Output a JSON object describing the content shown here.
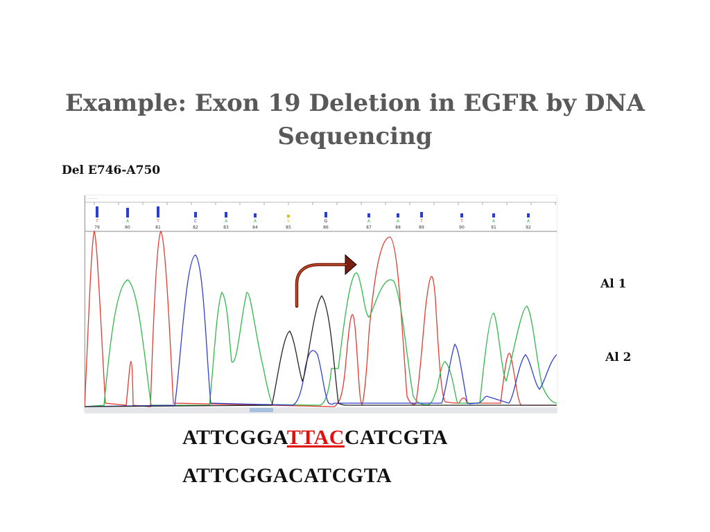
{
  "slide": {
    "title": "Example: Exon 19 Deletion in EGFR by DNA Sequencing",
    "subtitle": "Del E746-A750",
    "allele_1": "Al 1",
    "allele_2": "Al 2"
  },
  "sequences": {
    "wild_type": {
      "prefix": "ATTCGGA",
      "deleted": "TTAC",
      "suffix": "CATCGTA"
    },
    "mutant": "ATTCGGACATCGTA"
  },
  "chromatogram": {
    "base_positions": [
      "79",
      "80",
      "81",
      "82",
      "83",
      "84",
      "85",
      "86",
      "87",
      "88",
      "89",
      "90",
      "91",
      "92"
    ],
    "base_calls": [
      {
        "base": "T",
        "color": "#e23a2e"
      },
      {
        "base": "A",
        "color": "#2fb84a"
      },
      {
        "base": "T",
        "color": "#e23a2e"
      },
      {
        "base": "C",
        "color": "#2f3fd0"
      },
      {
        "base": "A",
        "color": "#2fb84a"
      },
      {
        "base": "A",
        "color": "#2fb84a"
      },
      {
        "base": "S",
        "color": "#e0c020"
      },
      {
        "base": "G",
        "color": "#222222"
      },
      {
        "base": "A",
        "color": "#2fb84a"
      },
      {
        "base": "A",
        "color": "#2fb84a"
      },
      {
        "base": "T",
        "color": "#e23a2e"
      },
      {
        "base": "T",
        "color": "#e23a2e"
      },
      {
        "base": "A",
        "color": "#2fb84a"
      },
      {
        "base": "A",
        "color": "#2fb84a"
      }
    ],
    "trace_colors": {
      "A": "#2fb84a",
      "C": "#2f3fd0",
      "G": "#222222",
      "T": "#e23a2e"
    },
    "arrow_color": "#7a1e10"
  }
}
